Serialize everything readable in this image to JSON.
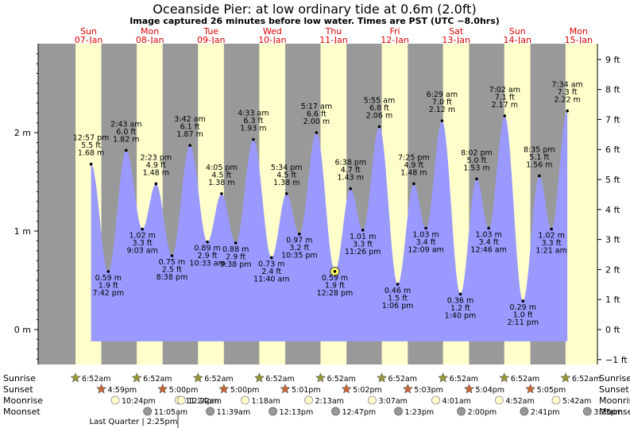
{
  "title": "Oceanside Pier: at low  ordinary tide at 0.6m (2.0ft)",
  "subtitle": "Image captured 26 minutes before low water. Times are PST (UTC −8.0hrs)",
  "days": [
    {
      "dow": "Sun",
      "date": "07-Jan"
    },
    {
      "dow": "Mon",
      "date": "08-Jan"
    },
    {
      "dow": "Tue",
      "date": "09-Jan"
    },
    {
      "dow": "Wed",
      "date": "10-Jan"
    },
    {
      "dow": "Thu",
      "date": "11-Jan"
    },
    {
      "dow": "Fri",
      "date": "12-Jan"
    },
    {
      "dow": "Sat",
      "date": "13-Jan"
    },
    {
      "dow": "Sun",
      "date": "14-Jan"
    },
    {
      "dow": "Mon",
      "date": "15-Jan"
    }
  ],
  "row_labels": {
    "sunrise": "Sunrise",
    "sunset": "Sunset",
    "moonrise": "Moonrise",
    "moonset": "Moonset"
  },
  "moon_phase_note": "Last Quarter | 2:25pm",
  "colors": {
    "night": "#999999",
    "day": "#ffffcc",
    "water": "#9999ff",
    "dayText": "#e00000",
    "sunrise": "#999933",
    "sunset": "#cc6633",
    "moonrise": "#ffffcc",
    "moonset": "#999999"
  },
  "chart_data": {
    "type": "area",
    "left_axis": {
      "unit": "m",
      "ticks": [
        "0 m",
        "1 m",
        "2 m"
      ],
      "values": [
        0,
        1,
        2
      ],
      "range": [
        -0.35,
        2.85
      ]
    },
    "right_axis": {
      "unit": "ft",
      "ticks": [
        "−1 ft",
        "0 ft",
        "1 ft",
        "2 ft",
        "3 ft",
        "4 ft",
        "5 ft",
        "6 ft",
        "7 ft",
        "8 ft",
        "9 ft"
      ],
      "values": [
        -1,
        0,
        1,
        2,
        3,
        4,
        5,
        6,
        7,
        8,
        9
      ]
    },
    "axis_start": "Sun 07-Jan 00:00",
    "tides": [
      {
        "time": "12:57 pm",
        "dayIdx": 0,
        "h": 1.68,
        "ft": "5.5 ft",
        "m": "1.68 m",
        "high": true
      },
      {
        "time": "7:42 pm",
        "dayIdx": 0,
        "h": 0.59,
        "ft": "1.9 ft",
        "m": "0.59 m",
        "high": false
      },
      {
        "time": "2:43 am",
        "dayIdx": 1,
        "h": 1.82,
        "ft": "6.0 ft",
        "m": "1.82 m",
        "high": true
      },
      {
        "time": "9:03 am",
        "dayIdx": 1,
        "h": 1.02,
        "ft": "3.3 ft",
        "m": "1.02 m",
        "high": false
      },
      {
        "time": "2:23 pm",
        "dayIdx": 1,
        "h": 1.48,
        "ft": "4.9 ft",
        "m": "1.48 m",
        "high": true
      },
      {
        "time": "8:38 pm",
        "dayIdx": 1,
        "h": 0.75,
        "ft": "2.5 ft",
        "m": "0.75 m",
        "high": false
      },
      {
        "time": "3:42 am",
        "dayIdx": 2,
        "h": 1.87,
        "ft": "6.1 ft",
        "m": "1.87 m",
        "high": true
      },
      {
        "time": "10:33 am",
        "dayIdx": 2,
        "h": 0.89,
        "ft": "2.9 ft",
        "m": "0.89 m",
        "high": false
      },
      {
        "time": "4:05 pm",
        "dayIdx": 2,
        "h": 1.38,
        "ft": "4.5 ft",
        "m": "1.38 m",
        "high": true
      },
      {
        "time": "9:38 pm",
        "dayIdx": 2,
        "h": 0.88,
        "ft": "2.9 ft",
        "m": "0.88 m",
        "high": false
      },
      {
        "time": "4:33 am",
        "dayIdx": 3,
        "h": 1.93,
        "ft": "6.3 ft",
        "m": "1.93 m",
        "high": true
      },
      {
        "time": "11:40 am",
        "dayIdx": 3,
        "h": 0.73,
        "ft": "2.4 ft",
        "m": "0.73 m",
        "high": false
      },
      {
        "time": "5:34 pm",
        "dayIdx": 3,
        "h": 1.38,
        "ft": "4.5 ft",
        "m": "1.38 m",
        "high": true
      },
      {
        "time": "10:35 pm",
        "dayIdx": 3,
        "h": 0.97,
        "ft": "3.2 ft",
        "m": "0.97 m",
        "high": false
      },
      {
        "time": "5:17 am",
        "dayIdx": 4,
        "h": 2.0,
        "ft": "6.6 ft",
        "m": "2.00 m",
        "high": true
      },
      {
        "time": "12:28 pm",
        "dayIdx": 4,
        "h": 0.59,
        "ft": "1.9 ft",
        "m": "0.59 m",
        "high": false,
        "current": true
      },
      {
        "time": "6:38 pm",
        "dayIdx": 4,
        "h": 1.43,
        "ft": "4.7 ft",
        "m": "1.43 m",
        "high": true
      },
      {
        "time": "11:26 pm",
        "dayIdx": 4,
        "h": 1.01,
        "ft": "3.3 ft",
        "m": "1.01 m",
        "high": false
      },
      {
        "time": "5:55 am",
        "dayIdx": 5,
        "h": 2.06,
        "ft": "6.8 ft",
        "m": "2.06 m",
        "high": true
      },
      {
        "time": "1:06 pm",
        "dayIdx": 5,
        "h": 0.46,
        "ft": "1.5 ft",
        "m": "0.46 m",
        "high": false
      },
      {
        "time": "7:25 pm",
        "dayIdx": 5,
        "h": 1.48,
        "ft": "4.9 ft",
        "m": "1.48 m",
        "high": true
      },
      {
        "time": "12:09 am",
        "dayIdx": 6,
        "h": 1.03,
        "ft": "3.4 ft",
        "m": "1.03 m",
        "high": false
      },
      {
        "time": "6:29 am",
        "dayIdx": 6,
        "h": 2.12,
        "ft": "7.0 ft",
        "m": "2.12 m",
        "high": true
      },
      {
        "time": "1:40 pm",
        "dayIdx": 6,
        "h": 0.36,
        "ft": "1.2 ft",
        "m": "0.36 m",
        "high": false
      },
      {
        "time": "8:02 pm",
        "dayIdx": 6,
        "h": 1.53,
        "ft": "5.0 ft",
        "m": "1.53 m",
        "high": true
      },
      {
        "time": "12:46 am",
        "dayIdx": 7,
        "h": 1.03,
        "ft": "3.4 ft",
        "m": "1.03 m",
        "high": false
      },
      {
        "time": "7:02 am",
        "dayIdx": 7,
        "h": 2.17,
        "ft": "7.1 ft",
        "m": "2.17 m",
        "high": true
      },
      {
        "time": "2:11 pm",
        "dayIdx": 7,
        "h": 0.29,
        "ft": "1.0 ft",
        "m": "0.29 m",
        "high": false
      },
      {
        "time": "8:35 pm",
        "dayIdx": 7,
        "h": 1.56,
        "ft": "5.1 ft",
        "m": "1.56 m",
        "high": true
      },
      {
        "time": "1:21 am",
        "dayIdx": 8,
        "h": 1.02,
        "ft": "3.3 ft",
        "m": "1.02 m",
        "high": false
      },
      {
        "time": "7:34 am",
        "dayIdx": 8,
        "h": 2.22,
        "ft": "7.3 ft",
        "m": "2.22 m",
        "high": true
      }
    ],
    "daylight": [
      {
        "dayIdx": 0,
        "sunrise": "6:52am",
        "sunset": "4:59pm"
      },
      {
        "dayIdx": 1,
        "sunrise": "6:52am",
        "sunset": "5:00pm"
      },
      {
        "dayIdx": 2,
        "sunrise": "6:52am",
        "sunset": "5:00pm"
      },
      {
        "dayIdx": 3,
        "sunrise": "6:52am",
        "sunset": "5:01pm"
      },
      {
        "dayIdx": 4,
        "sunrise": "6:52am",
        "sunset": "5:02pm"
      },
      {
        "dayIdx": 5,
        "sunrise": "6:52am",
        "sunset": "5:03pm"
      },
      {
        "dayIdx": 6,
        "sunrise": "6:52am",
        "sunset": "5:04pm"
      },
      {
        "dayIdx": 7,
        "sunrise": "6:52am",
        "sunset": "5:05pm"
      },
      {
        "dayIdx": 8,
        "sunrise": "6:52am",
        "sunset": ""
      }
    ],
    "moonrise": [
      {
        "dayIdx": 0,
        "time": "10:24pm"
      },
      {
        "dayIdx": 1,
        "time": "11:24pm"
      },
      {
        "dayIdx": 2,
        "time": "12:22am"
      },
      {
        "dayIdx": 3,
        "time": "1:18am"
      },
      {
        "dayIdx": 4,
        "time": "2:13am"
      },
      {
        "dayIdx": 5,
        "time": "3:07am"
      },
      {
        "dayIdx": 6,
        "time": "4:01am"
      },
      {
        "dayIdx": 7,
        "time": "4:52am"
      },
      {
        "dayIdx": 8,
        "time": "5:42am"
      }
    ],
    "moonset": [
      {
        "dayIdx": 1,
        "time": "11:05am"
      },
      {
        "dayIdx": 2,
        "time": "11:39am"
      },
      {
        "dayIdx": 3,
        "time": "12:13pm"
      },
      {
        "dayIdx": 4,
        "time": "12:47pm"
      },
      {
        "dayIdx": 5,
        "time": "1:23pm"
      },
      {
        "dayIdx": 6,
        "time": "2:00pm"
      },
      {
        "dayIdx": 7,
        "time": "2:41pm"
      },
      {
        "dayIdx": 8,
        "time": "3:25pm"
      }
    ]
  }
}
